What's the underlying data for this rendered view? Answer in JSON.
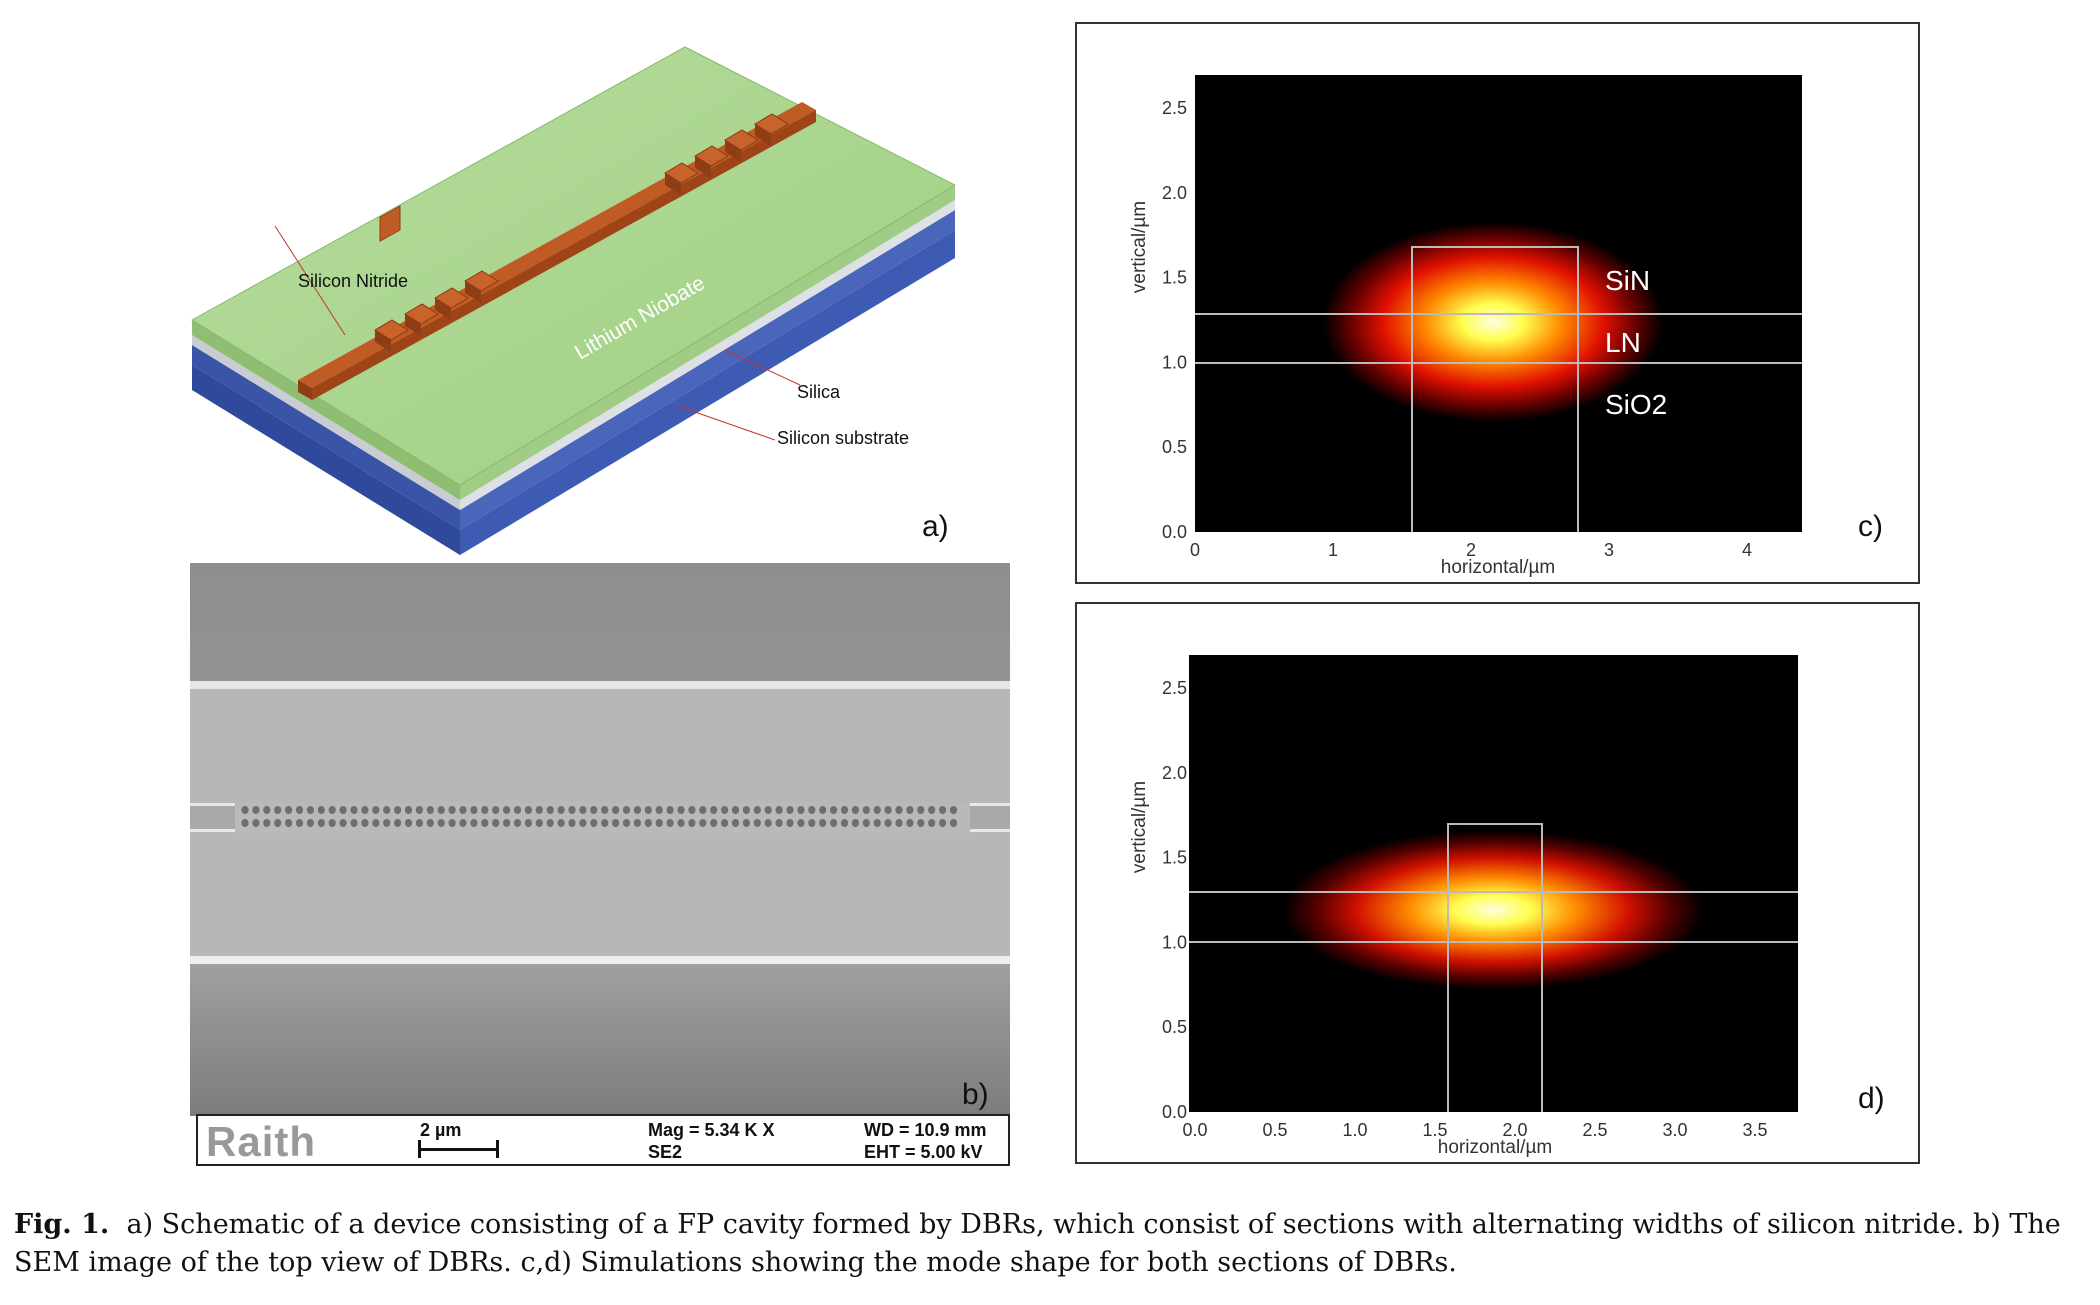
{
  "panel_a": {
    "label": "a)",
    "layers": {
      "nitride": "Silicon Nitride",
      "niobate": "Lithium Niobate",
      "silica": "Silica",
      "substrate": "Silicon substrate"
    },
    "colors": {
      "nitride": "#b5501e",
      "niobate": "#a7d38c",
      "silica": "#d0d3d8",
      "substrate": "#3a55a8"
    }
  },
  "panel_b": {
    "label": "b)",
    "brand": "Raith",
    "scale": "2 µm",
    "mag": "Mag =   5.34 K X",
    "detector": "SE2",
    "wd": "WD = 10.9 mm",
    "eht": "EHT =  5.00 kV"
  },
  "panel_c": {
    "label": "c)",
    "xlabel": "horizontal/µm",
    "ylabel": "vertical/µm",
    "xticks": [
      "0",
      "1",
      "2",
      "3",
      "4"
    ],
    "yticks": [
      "0.0",
      "0.5",
      "1.0",
      "1.5",
      "2.0",
      "2.5"
    ],
    "regions": {
      "sin": "SiN",
      "ln": "LN",
      "sio2": "SiO2"
    }
  },
  "panel_d": {
    "label": "d)",
    "xlabel": "horizontal/µm",
    "ylabel": "vertical/µm",
    "xticks": [
      "0.0",
      "0.5",
      "1.0",
      "1.5",
      "2.0",
      "2.5",
      "3.0",
      "3.5"
    ],
    "yticks": [
      "0.0",
      "0.5",
      "1.0",
      "1.5",
      "2.0",
      "2.5"
    ]
  },
  "caption": {
    "fig": "Fig. 1.",
    "text": "a) Schematic of a device consisting of a FP cavity formed by DBRs, which consist of sections with alternating widths of silicon nitride. b) The SEM image of the top view of DBRs. c,d) Simulations showing the mode shape for both sections of DBRs."
  }
}
